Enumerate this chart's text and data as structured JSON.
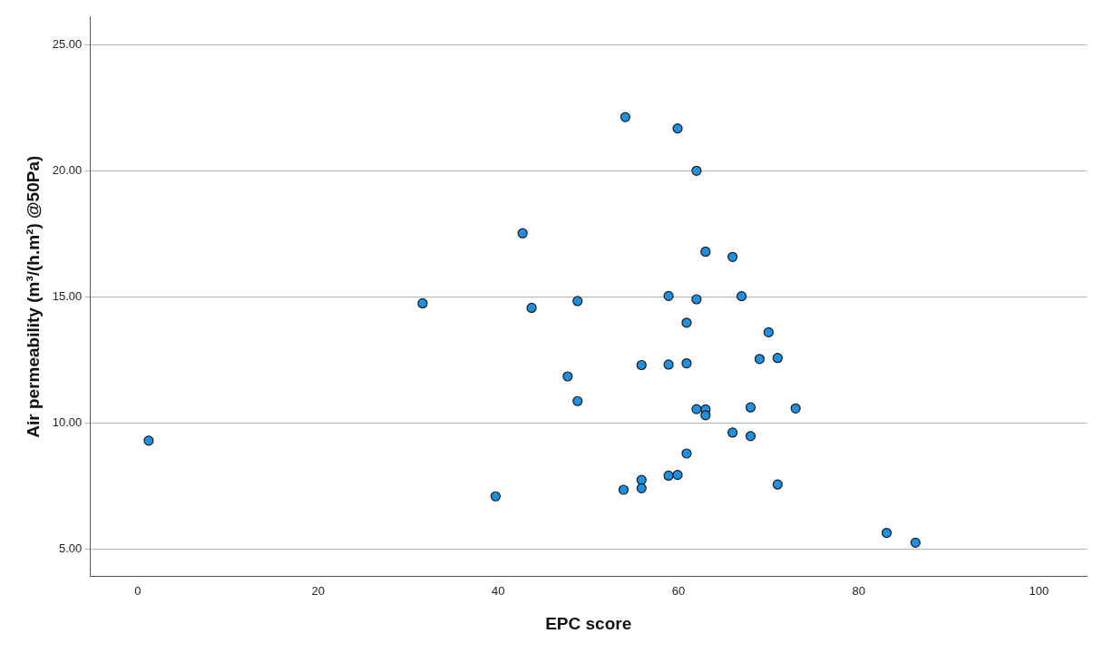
{
  "chart_data": {
    "type": "scatter",
    "xlabel": "EPC score",
    "ylabel": "Air permeability (m³/(h.m²) @50Pa)",
    "xlim": [
      -5.3,
      105.3
    ],
    "xticks": [
      0,
      20,
      40,
      60,
      80,
      100
    ],
    "ylim": [
      3.9,
      26.1
    ],
    "yticks": [
      {
        "value": 5,
        "label": "5.00"
      },
      {
        "value": 10,
        "label": "10.00"
      },
      {
        "value": 15,
        "label": "15.00"
      },
      {
        "value": 20,
        "label": "20.00"
      },
      {
        "value": 25,
        "label": "25.00"
      }
    ],
    "grid": "y",
    "marker": "circle",
    "legend": false,
    "series": [
      {
        "color": "#1f8fe0",
        "x": [
          1.2,
          31.6,
          39.7,
          42.7,
          43.7,
          47.7,
          48.8,
          48.8,
          53.9,
          54.1,
          55.9,
          55.9,
          55.9,
          58.9,
          58.9,
          58.9,
          59.9,
          59.9,
          60.9,
          60.9,
          60.9,
          62.0,
          62.0,
          62.0,
          63.0,
          63.0,
          63.0,
          66.0,
          66.0,
          67.0,
          68.0,
          68.0,
          69.0,
          70.0,
          71.0,
          71.0,
          73.0,
          83.1,
          86.3
        ],
        "values": [
          9.29,
          14.74,
          7.08,
          17.52,
          14.56,
          11.84,
          14.83,
          10.86,
          7.34,
          22.13,
          12.29,
          7.73,
          7.4,
          15.03,
          12.31,
          7.9,
          21.68,
          7.93,
          13.97,
          12.36,
          8.78,
          20.0,
          14.9,
          10.54,
          16.79,
          10.53,
          10.3,
          16.58,
          9.61,
          15.02,
          10.61,
          9.47,
          12.53,
          13.59,
          12.57,
          7.55,
          10.57,
          5.63,
          5.24
        ]
      }
    ]
  }
}
